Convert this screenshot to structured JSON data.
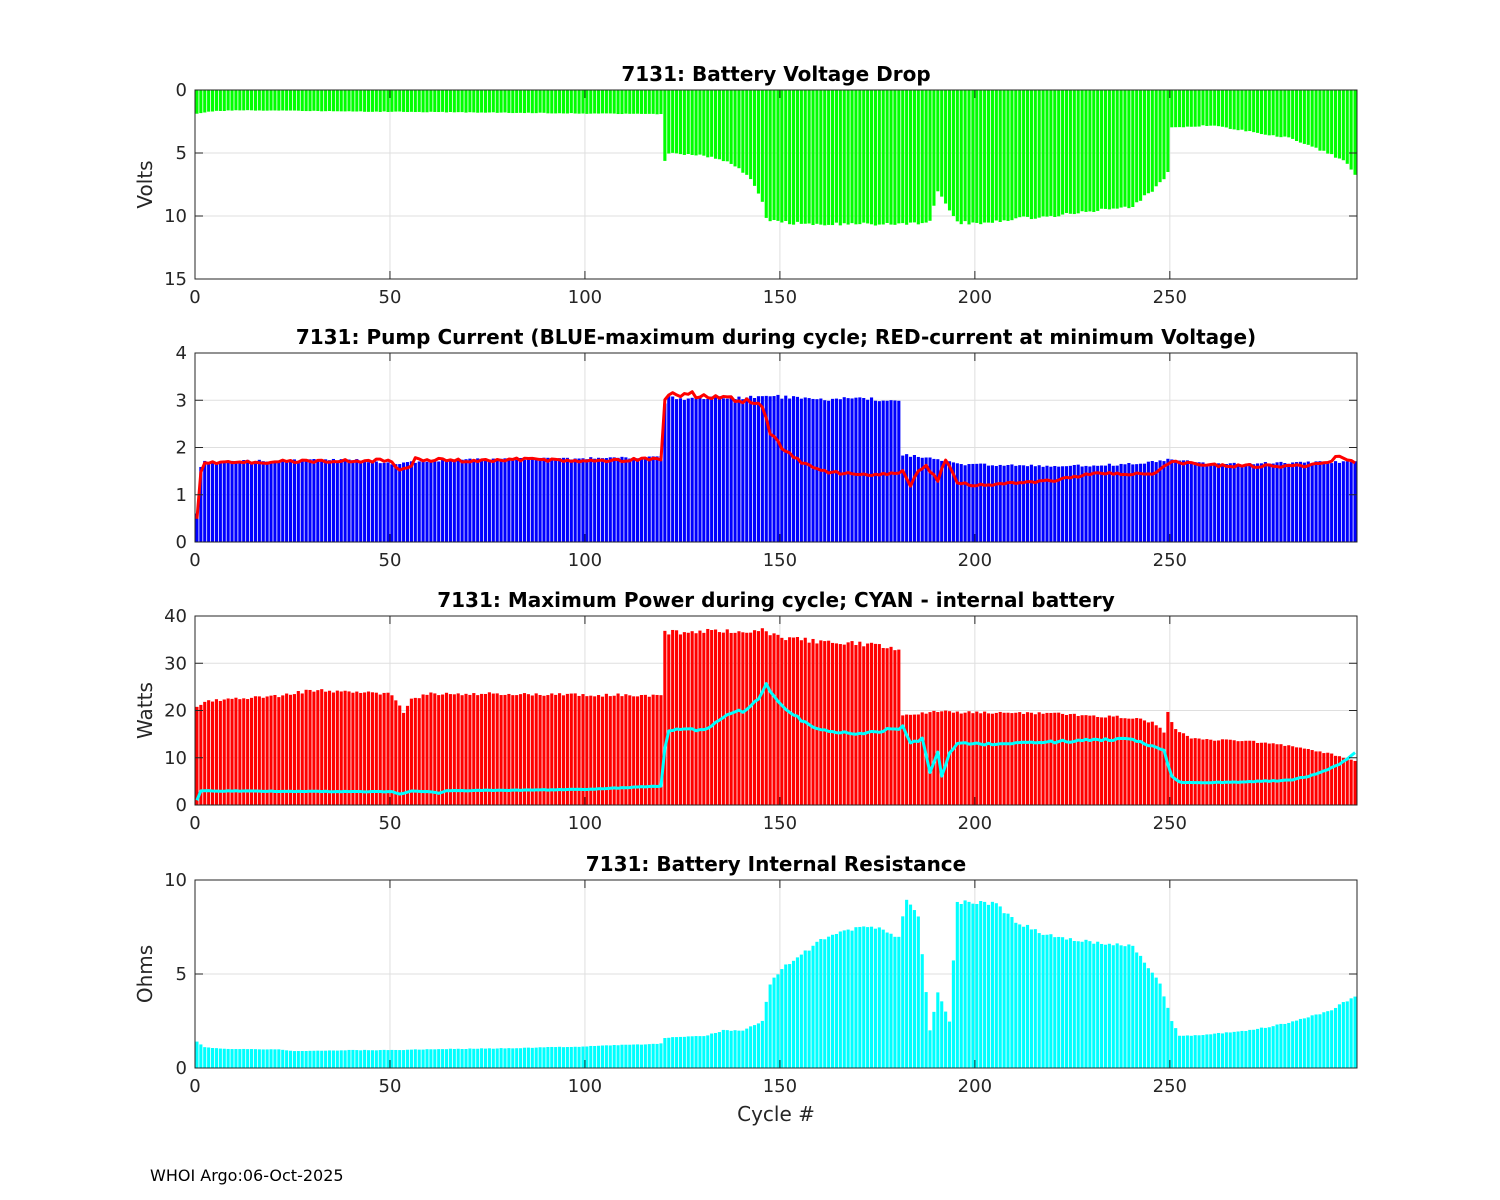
{
  "footer": "WHOI Argo:06-Oct-2025",
  "chart_data": [
    {
      "type": "bar",
      "title": "7131: Battery Voltage Drop",
      "xlabel": "",
      "ylabel": "Volts",
      "xlim": [
        0,
        298
      ],
      "ylim": [
        0,
        15
      ],
      "y_reversed": true,
      "xticks": [
        0,
        50,
        100,
        150,
        200,
        250
      ],
      "yticks": [
        0,
        5,
        10,
        15
      ],
      "grid": true,
      "series": [
        {
          "kind": "bar",
          "color": "#00ff00",
          "keys": [
            [
              0,
              1.9
            ],
            [
              3,
              1.7
            ],
            [
              10,
              1.6
            ],
            [
              40,
              1.7
            ],
            [
              80,
              1.8
            ],
            [
              110,
              1.9
            ],
            [
              119,
              1.9
            ],
            [
              120,
              5.6
            ],
            [
              121,
              5.0
            ],
            [
              130,
              5.2
            ],
            [
              137,
              5.8
            ],
            [
              140,
              6.5
            ],
            [
              143,
              7.5
            ],
            [
              145,
              9.0
            ],
            [
              146,
              10.3
            ],
            [
              150,
              10.5
            ],
            [
              155,
              10.6
            ],
            [
              180,
              10.7
            ],
            [
              188,
              10.5
            ],
            [
              190,
              8.0
            ],
            [
              195,
              10.5
            ],
            [
              200,
              10.6
            ],
            [
              210,
              10.2
            ],
            [
              220,
              10.0
            ],
            [
              230,
              9.6
            ],
            [
              240,
              9.2
            ],
            [
              245,
              8.0
            ],
            [
              248,
              7.0
            ],
            [
              249,
              6.5
            ],
            [
              250,
              3.0
            ],
            [
              260,
              2.8
            ],
            [
              270,
              3.3
            ],
            [
              280,
              3.8
            ],
            [
              290,
              5.0
            ],
            [
              295,
              5.8
            ],
            [
              297,
              6.7
            ]
          ]
        }
      ]
    },
    {
      "type": "bar",
      "title": "7131: Pump Current (BLUE-maximum during cycle; RED-current at minimum Voltage)",
      "xlabel": "",
      "ylabel": "",
      "xlim": [
        0,
        298
      ],
      "ylim": [
        0,
        4
      ],
      "xticks": [
        0,
        50,
        100,
        150,
        200,
        250
      ],
      "yticks": [
        0,
        1,
        2,
        3,
        4
      ],
      "grid": true,
      "series": [
        {
          "kind": "bar",
          "color": "#0000ff",
          "keys": [
            [
              0,
              0.6
            ],
            [
              1,
              1.6
            ],
            [
              2,
              1.7
            ],
            [
              20,
              1.72
            ],
            [
              40,
              1.75
            ],
            [
              50,
              1.65
            ],
            [
              60,
              1.72
            ],
            [
              80,
              1.76
            ],
            [
              100,
              1.77
            ],
            [
              119,
              1.8
            ],
            [
              120,
              2.9
            ],
            [
              121,
              3.05
            ],
            [
              130,
              3.05
            ],
            [
              140,
              3.05
            ],
            [
              145,
              3.1
            ],
            [
              160,
              3.0
            ],
            [
              170,
              3.05
            ],
            [
              180,
              3.0
            ],
            [
              181,
              1.85
            ],
            [
              190,
              1.75
            ],
            [
              195,
              1.65
            ],
            [
              220,
              1.6
            ],
            [
              240,
              1.65
            ],
            [
              250,
              1.75
            ],
            [
              260,
              1.65
            ],
            [
              297,
              1.7
            ]
          ]
        },
        {
          "kind": "line",
          "color": "#ff0000",
          "width": 3,
          "keys": [
            [
              0,
              0.5
            ],
            [
              1,
              1.5
            ],
            [
              2,
              1.68
            ],
            [
              20,
              1.7
            ],
            [
              40,
              1.72
            ],
            [
              50,
              1.72
            ],
            [
              52,
              1.5
            ],
            [
              55,
              1.6
            ],
            [
              56,
              1.75
            ],
            [
              70,
              1.72
            ],
            [
              80,
              1.75
            ],
            [
              100,
              1.72
            ],
            [
              119,
              1.75
            ],
            [
              120,
              3.0
            ],
            [
              122,
              3.15
            ],
            [
              130,
              3.1
            ],
            [
              140,
              3.0
            ],
            [
              145,
              2.9
            ],
            [
              147,
              2.3
            ],
            [
              150,
              2.0
            ],
            [
              155,
              1.7
            ],
            [
              160,
              1.5
            ],
            [
              170,
              1.42
            ],
            [
              178,
              1.45
            ],
            [
              181,
              1.5
            ],
            [
              183,
              1.2
            ],
            [
              185,
              1.5
            ],
            [
              187,
              1.6
            ],
            [
              190,
              1.3
            ],
            [
              192,
              1.75
            ],
            [
              195,
              1.25
            ],
            [
              200,
              1.2
            ],
            [
              210,
              1.25
            ],
            [
              220,
              1.3
            ],
            [
              230,
              1.45
            ],
            [
              245,
              1.45
            ],
            [
              250,
              1.7
            ],
            [
              260,
              1.62
            ],
            [
              280,
              1.6
            ],
            [
              290,
              1.65
            ],
            [
              292,
              1.8
            ],
            [
              297,
              1.7
            ]
          ]
        }
      ]
    },
    {
      "type": "bar",
      "title": "7131: Maximum Power during cycle; CYAN - internal battery",
      "xlabel": "",
      "ylabel": "Watts",
      "xlim": [
        0,
        298
      ],
      "ylim": [
        0,
        40
      ],
      "xticks": [
        0,
        50,
        100,
        150,
        200,
        250
      ],
      "yticks": [
        0,
        10,
        20,
        30,
        40
      ],
      "grid": true,
      "series": [
        {
          "kind": "bar",
          "color": "#ff0000",
          "keys": [
            [
              0,
              20.5
            ],
            [
              2,
              22
            ],
            [
              20,
              23
            ],
            [
              30,
              24.3
            ],
            [
              50,
              23.5
            ],
            [
              53,
              19.5
            ],
            [
              55,
              22.5
            ],
            [
              60,
              23.5
            ],
            [
              80,
              23.5
            ],
            [
              100,
              23.3
            ],
            [
              119,
              23.2
            ],
            [
              120,
              36.5
            ],
            [
              130,
              36.8
            ],
            [
              145,
              37
            ],
            [
              150,
              35.5
            ],
            [
              160,
              34.5
            ],
            [
              170,
              34.2
            ],
            [
              180,
              33
            ],
            [
              181,
              18.8
            ],
            [
              190,
              19.8
            ],
            [
              200,
              19.5
            ],
            [
              220,
              19.3
            ],
            [
              240,
              18.5
            ],
            [
              245,
              17.5
            ],
            [
              248,
              15.5
            ],
            [
              249,
              19.5
            ],
            [
              251,
              16
            ],
            [
              255,
              14
            ],
            [
              270,
              13.5
            ],
            [
              280,
              12.5
            ],
            [
              290,
              11
            ],
            [
              297,
              9.3
            ]
          ]
        },
        {
          "kind": "line",
          "color": "#00ffff",
          "width": 3,
          "keys": [
            [
              0,
              1
            ],
            [
              1,
              3
            ],
            [
              20,
              2.9
            ],
            [
              50,
              2.8
            ],
            [
              52,
              2.3
            ],
            [
              55,
              2.9
            ],
            [
              60,
              2.8
            ],
            [
              62,
              2.5
            ],
            [
              64,
              3
            ],
            [
              100,
              3.3
            ],
            [
              119,
              4
            ],
            [
              120,
              12
            ],
            [
              121,
              16
            ],
            [
              130,
              16
            ],
            [
              135,
              18.5
            ],
            [
              140,
              20
            ],
            [
              144,
              22
            ],
            [
              146,
              25.5
            ],
            [
              150,
              21
            ],
            [
              155,
              18
            ],
            [
              160,
              16
            ],
            [
              170,
              15
            ],
            [
              178,
              16
            ],
            [
              181,
              16.5
            ],
            [
              183,
              13
            ],
            [
              186,
              14
            ],
            [
              188,
              7
            ],
            [
              190,
              11
            ],
            [
              191,
              6
            ],
            [
              193,
              11
            ],
            [
              195,
              13
            ],
            [
              205,
              12.8
            ],
            [
              220,
              13.4
            ],
            [
              240,
              14
            ],
            [
              245,
              12.5
            ],
            [
              248,
              11.5
            ],
            [
              250,
              6
            ],
            [
              252,
              4.8
            ],
            [
              260,
              4.7
            ],
            [
              280,
              5.2
            ],
            [
              287,
              6.5
            ],
            [
              290,
              7.5
            ],
            [
              293,
              8.5
            ],
            [
              297,
              11
            ]
          ]
        }
      ]
    },
    {
      "type": "bar",
      "title": "7131: Battery Internal Resistance",
      "xlabel": "Cycle #",
      "ylabel": "Ohms",
      "xlim": [
        0,
        298
      ],
      "ylim": [
        0,
        10
      ],
      "xticks": [
        0,
        50,
        100,
        150,
        200,
        250
      ],
      "yticks": [
        0,
        5,
        10
      ],
      "grid": true,
      "series": [
        {
          "kind": "bar",
          "color": "#00ffff",
          "keys": [
            [
              0,
              1.4
            ],
            [
              2,
              1.1
            ],
            [
              10,
              1.0
            ],
            [
              20,
              1.0
            ],
            [
              25,
              0.9
            ],
            [
              40,
              0.95
            ],
            [
              50,
              0.95
            ],
            [
              60,
              1.0
            ],
            [
              80,
              1.05
            ],
            [
              100,
              1.15
            ],
            [
              119,
              1.3
            ],
            [
              120,
              1.6
            ],
            [
              130,
              1.7
            ],
            [
              135,
              2.0
            ],
            [
              140,
              2.0
            ],
            [
              145,
              2.5
            ],
            [
              147,
              4.5
            ],
            [
              150,
              5.3
            ],
            [
              155,
              6.0
            ],
            [
              160,
              6.8
            ],
            [
              165,
              7.2
            ],
            [
              170,
              7.5
            ],
            [
              175,
              7.4
            ],
            [
              180,
              7.0
            ],
            [
              182,
              9.0
            ],
            [
              185,
              8.0
            ],
            [
              188,
              2.0
            ],
            [
              190,
              4.0
            ],
            [
              193,
              2.5
            ],
            [
              195,
              8.8
            ],
            [
              200,
              8.8
            ],
            [
              205,
              8.7
            ],
            [
              210,
              7.8
            ],
            [
              215,
              7.3
            ],
            [
              220,
              7.0
            ],
            [
              230,
              6.7
            ],
            [
              240,
              6.5
            ],
            [
              245,
              5.0
            ],
            [
              247,
              4.5
            ],
            [
              250,
              2.5
            ],
            [
              252,
              1.7
            ],
            [
              260,
              1.8
            ],
            [
              270,
              2.0
            ],
            [
              280,
              2.4
            ],
            [
              290,
              3.0
            ],
            [
              297,
              3.8
            ]
          ]
        }
      ]
    }
  ]
}
